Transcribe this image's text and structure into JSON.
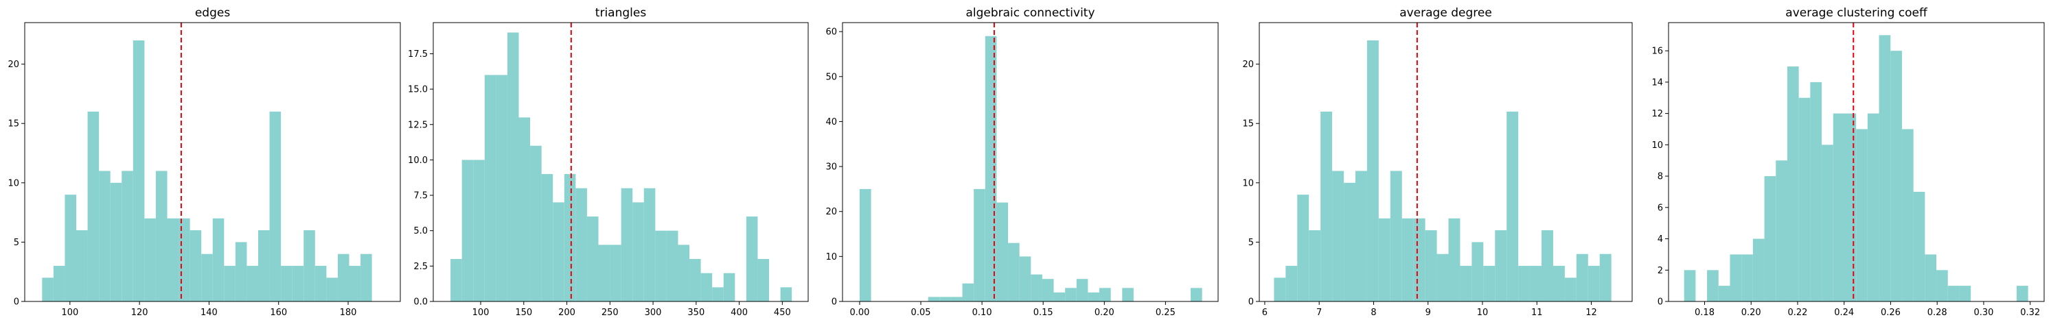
{
  "colors": {
    "bar": "#89d2cf",
    "mean_line": "#e8000b",
    "axis": "#000000"
  },
  "chart_data": [
    {
      "type": "bar",
      "title": "edges",
      "xlim": [
        87,
        195
      ],
      "ylim": [
        0,
        23.5
      ],
      "xticks": [
        {
          "v": 100,
          "label": "100"
        },
        {
          "v": 120,
          "label": "120"
        },
        {
          "v": 140,
          "label": "140"
        },
        {
          "v": 160,
          "label": "160"
        },
        {
          "v": 180,
          "label": "180"
        }
      ],
      "yticks": [
        {
          "v": 0,
          "label": "0"
        },
        {
          "v": 5,
          "label": "5"
        },
        {
          "v": 10,
          "label": "10"
        },
        {
          "v": 15,
          "label": "15"
        },
        {
          "v": 20,
          "label": "20"
        }
      ],
      "bin_start": 92,
      "bin_width": 3.27,
      "values": [
        2,
        3,
        9,
        6,
        16,
        11,
        10,
        11,
        22,
        7,
        11,
        7,
        7,
        6,
        4,
        7,
        3,
        5,
        3,
        6,
        16,
        3,
        3,
        6,
        3,
        2,
        4,
        3,
        4,
        0
      ],
      "mean": 132
    },
    {
      "type": "bar",
      "title": "triangles",
      "xlim": [
        45,
        480
      ],
      "ylim": [
        0,
        19.7
      ],
      "xticks": [
        {
          "v": 100,
          "label": "100"
        },
        {
          "v": 150,
          "label": "150"
        },
        {
          "v": 200,
          "label": "200"
        },
        {
          "v": 250,
          "label": "250"
        },
        {
          "v": 300,
          "label": "300"
        },
        {
          "v": 350,
          "label": "350"
        },
        {
          "v": 400,
          "label": "400"
        },
        {
          "v": 450,
          "label": "450"
        }
      ],
      "yticks": [
        {
          "v": 0,
          "label": "0.0"
        },
        {
          "v": 2.5,
          "label": "2.5"
        },
        {
          "v": 5,
          "label": "5.0"
        },
        {
          "v": 7.5,
          "label": "7.5"
        },
        {
          "v": 10,
          "label": "10.0"
        },
        {
          "v": 12.5,
          "label": "12.5"
        },
        {
          "v": 15,
          "label": "15.0"
        },
        {
          "v": 17.5,
          "label": "17.5"
        }
      ],
      "bin_start": 65,
      "bin_width": 13.2,
      "values": [
        3,
        10,
        10,
        16,
        16,
        19,
        13,
        11,
        9,
        7,
        9,
        8,
        6,
        4,
        4,
        8,
        7,
        8,
        5,
        5,
        4,
        3,
        2,
        1,
        2,
        0,
        6,
        3,
        0,
        1
      ],
      "mean": 205
    },
    {
      "type": "bar",
      "title": "algebraic connectivity",
      "xlim": [
        -0.014,
        0.293
      ],
      "ylim": [
        0,
        62
      ],
      "xticks": [
        {
          "v": 0.0,
          "label": "0.00"
        },
        {
          "v": 0.05,
          "label": "0.05"
        },
        {
          "v": 0.1,
          "label": "0.10"
        },
        {
          "v": 0.15,
          "label": "0.15"
        },
        {
          "v": 0.2,
          "label": "0.20"
        },
        {
          "v": 0.25,
          "label": "0.25"
        }
      ],
      "yticks": [
        {
          "v": 0,
          "label": "0"
        },
        {
          "v": 10,
          "label": "10"
        },
        {
          "v": 20,
          "label": "20"
        },
        {
          "v": 30,
          "label": "30"
        },
        {
          "v": 40,
          "label": "40"
        },
        {
          "v": 50,
          "label": "50"
        },
        {
          "v": 60,
          "label": "60"
        }
      ],
      "bin_start": 0.0,
      "bin_width": 0.00933,
      "values": [
        25,
        0,
        0,
        0,
        0,
        0,
        1,
        1,
        1,
        4,
        25,
        59,
        22,
        13,
        10,
        6,
        5,
        2,
        3,
        5,
        2,
        3,
        0,
        3,
        0,
        0,
        0,
        0,
        0,
        3
      ],
      "mean": 0.11
    },
    {
      "type": "bar",
      "title": "average degree",
      "xlim": [
        5.9,
        12.75
      ],
      "ylim": [
        0,
        23.5
      ],
      "xticks": [
        {
          "v": 6,
          "label": "6"
        },
        {
          "v": 7,
          "label": "7"
        },
        {
          "v": 8,
          "label": "8"
        },
        {
          "v": 9,
          "label": "9"
        },
        {
          "v": 10,
          "label": "10"
        },
        {
          "v": 11,
          "label": "11"
        },
        {
          "v": 12,
          "label": "12"
        }
      ],
      "yticks": [
        {
          "v": 0,
          "label": "0"
        },
        {
          "v": 5,
          "label": "5"
        },
        {
          "v": 10,
          "label": "10"
        },
        {
          "v": 15,
          "label": "15"
        },
        {
          "v": 20,
          "label": "20"
        }
      ],
      "bin_start": 6.17,
      "bin_width": 0.2137,
      "values": [
        2,
        3,
        9,
        6,
        16,
        11,
        10,
        11,
        22,
        7,
        11,
        7,
        7,
        6,
        4,
        7,
        3,
        5,
        3,
        6,
        16,
        3,
        3,
        6,
        3,
        2,
        4,
        3,
        4,
        0
      ],
      "mean": 8.8
    },
    {
      "type": "bar",
      "title": "average clustering coeff",
      "xlim": [
        0.1645,
        0.326
      ],
      "ylim": [
        0,
        17.8
      ],
      "xticks": [
        {
          "v": 0.18,
          "label": "0.18"
        },
        {
          "v": 0.2,
          "label": "0.20"
        },
        {
          "v": 0.22,
          "label": "0.22"
        },
        {
          "v": 0.24,
          "label": "0.24"
        },
        {
          "v": 0.26,
          "label": "0.26"
        },
        {
          "v": 0.28,
          "label": "0.28"
        },
        {
          "v": 0.3,
          "label": "0.30"
        },
        {
          "v": 0.32,
          "label": "0.32"
        }
      ],
      "yticks": [
        {
          "v": 0,
          "label": "0"
        },
        {
          "v": 2,
          "label": "2"
        },
        {
          "v": 4,
          "label": "4"
        },
        {
          "v": 6,
          "label": "6"
        },
        {
          "v": 8,
          "label": "8"
        },
        {
          "v": 10,
          "label": "10"
        },
        {
          "v": 12,
          "label": "12"
        },
        {
          "v": 14,
          "label": "14"
        },
        {
          "v": 16,
          "label": "16"
        }
      ],
      "bin_start": 0.1712,
      "bin_width": 0.00493,
      "values": [
        2,
        0,
        2,
        1,
        3,
        3,
        4,
        8,
        9,
        15,
        13,
        14,
        10,
        12,
        12,
        11,
        12,
        17,
        16,
        11,
        7,
        3,
        2,
        1,
        1,
        0,
        0,
        0,
        0,
        1
      ],
      "mean": 0.244
    }
  ]
}
